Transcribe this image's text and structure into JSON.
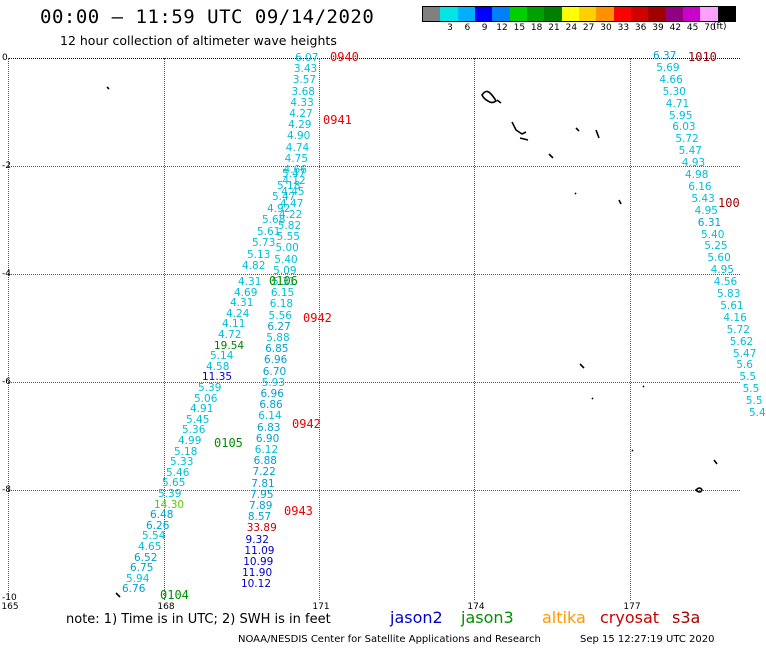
{
  "header": {
    "title": "00:00 – 11:59 UTC 09/14/2020",
    "subtitle": "12 hour collection of altimeter wave heights",
    "units": "(ft)"
  },
  "legend": {
    "colors": [
      "#808080",
      "#00e5e5",
      "#00b0ff",
      "#0000ff",
      "#0080ff",
      "#00d000",
      "#00a000",
      "#008000",
      "#ffff00",
      "#ffd000",
      "#ff9000",
      "#ff0000",
      "#d00000",
      "#a00000",
      "#900080",
      "#cc00cc",
      "#ffa0ff",
      "#000000"
    ],
    "ticks": [
      "3",
      "6",
      "9",
      "12",
      "15",
      "18",
      "21",
      "24",
      "27",
      "30",
      "33",
      "36",
      "39",
      "42",
      "45",
      "70"
    ]
  },
  "axes": {
    "y_ticks": [
      "0",
      "-2",
      "-4",
      "-6",
      "-8",
      "-10"
    ],
    "x_ticks": [
      "165",
      "168",
      "171",
      "174",
      "177"
    ]
  },
  "footer": {
    "note": "note:  1) Time is in UTC;  2) SWH is in feet",
    "satellites": [
      {
        "name": "jason2",
        "color": "#0000cc"
      },
      {
        "name": "jason3",
        "color": "#009000"
      },
      {
        "name": "altika",
        "color": "#ff9900"
      },
      {
        "name": "cryosat",
        "color": "#cc0000"
      },
      {
        "name": "s3a",
        "color": "#aa0000"
      }
    ],
    "credit": "NOAA/NESDIS Center for Satellite Applications and Research",
    "timestamp": "Sep 15 12:27:19 UTC 2020"
  },
  "times": [
    {
      "text": "0940",
      "color": "#ee0000"
    },
    {
      "text": "0941",
      "color": "#ee0000"
    },
    {
      "text": "0106",
      "color": "#009000"
    },
    {
      "text": "0942",
      "color": "#ee0000"
    },
    {
      "text": "0942",
      "color": "#ee0000"
    },
    {
      "text": "0105",
      "color": "#009000"
    },
    {
      "text": "0943",
      "color": "#ee0000"
    },
    {
      "text": "0104",
      "color": "#009000"
    },
    {
      "text": "1010",
      "color": "#990000"
    },
    {
      "text": "100",
      "color": "#990000"
    }
  ],
  "tracks": {
    "left": [
      "4.31",
      "4.69",
      "4.31",
      "4.24",
      "4.11",
      "4.72",
      "19.54",
      "5.14",
      "4.58",
      "11.35",
      "5.39",
      "5.06",
      "4.91",
      "5.45",
      "5.36",
      "4.99",
      "5.18",
      "5.33",
      "5.46",
      "5.65",
      "5.39",
      "14.30",
      "6.48",
      "6.26",
      "5.54",
      "4.65",
      "6.52",
      "6.75",
      "5.94",
      "6.76"
    ],
    "left_upper": [
      "5.47",
      "5.18",
      "5.47",
      "4.92",
      "5.68",
      "5.61",
      "5.73",
      "5.13",
      "4.82"
    ],
    "middle": [
      "6.07",
      "3.43",
      "3.57",
      "3.68",
      "4.33",
      "4.27",
      "4.29",
      "4.90",
      "4.74",
      "4.75",
      "4.66",
      "4.12",
      "4.45",
      "4.47",
      "4.22",
      "5.82",
      "5.55",
      "5.00",
      "5.40",
      "5.09",
      "5.31",
      "6.15",
      "6.18",
      "5.56",
      "6.27",
      "5.88",
      "6.85",
      "6.96",
      "6.70",
      "5.93",
      "6.96",
      "6.86",
      "6.14",
      "6.83",
      "6.90",
      "6.12",
      "6.88",
      "7.22",
      "7.81",
      "7.95",
      "7.89",
      "8.57",
      "33.89",
      "9.32",
      "11.09",
      "10.99",
      "11.90",
      "10.12"
    ],
    "right": [
      "6.37",
      "5.69",
      "4.66",
      "5.30",
      "4.71",
      "5.95",
      "6.03",
      "5.72",
      "5.47",
      "4.93",
      "4.98",
      "6.16",
      "5.43",
      "4.95",
      "6.31",
      "5.40",
      "5.25",
      "5.60",
      "4.95",
      "4.56",
      "5.83",
      "5.61",
      "4.16",
      "5.72",
      "5.62",
      "5.47",
      "5.6",
      "5.5",
      "5.5",
      "5.5",
      "5.4"
    ]
  }
}
